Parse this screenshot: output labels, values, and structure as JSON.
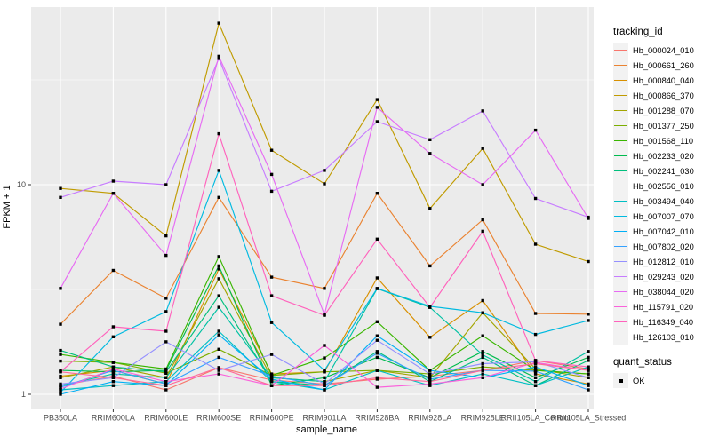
{
  "labels": {
    "y_axis_title": "FPKM + 1",
    "x_axis_title": "sample_name",
    "legend_title": "tracking_id",
    "quant_legend_title": "quant_status",
    "quant_ok_label": "OK"
  },
  "chart_data": {
    "type": "line",
    "title": "",
    "xlabel": "sample_name",
    "ylabel": "FPKM + 1",
    "y_scale": "log10",
    "y_ticks": [
      1,
      10
    ],
    "y_minor_gridlines": [
      3.1623,
      31.623
    ],
    "ylim": [
      0.85,
      69
    ],
    "grid": "on",
    "legend_position": "right",
    "marker": "black-square",
    "quant_status": {
      "title": "quant_status",
      "items": [
        "OK"
      ]
    },
    "colors": {
      "panel_bg": "#EBEBEB",
      "gridline": "#FFFFFF",
      "tick_text": "#4D4D4D",
      "point": "#000000",
      "legend_key_bg": "#F2F2F2"
    },
    "categories": [
      "PB350LA",
      "RRIM600LA",
      "RRIM600LE",
      "RRIM600SE",
      "RRIM600PE",
      "RRIM901LA",
      "RRIM928BA",
      "RRIM928LA",
      "RRIM928LE",
      "RRII105LA_Control",
      "RRII105LA_Stressed"
    ],
    "series": [
      {
        "name": "Hb_000024_010",
        "color": "#F8766D",
        "values": [
          1.1,
          1.22,
          1.05,
          1.34,
          1.17,
          1.12,
          1.18,
          1.22,
          1.3,
          1.45,
          1.32
        ]
      },
      {
        "name": "Hb_000661_260",
        "color": "#EA8331",
        "values": [
          2.16,
          3.9,
          2.87,
          8.7,
          3.62,
          3.2,
          9.1,
          4.1,
          6.8,
          2.43,
          2.41
        ]
      },
      {
        "name": "Hb_000840_040",
        "color": "#D89000",
        "values": [
          1.22,
          1.3,
          1.12,
          3.96,
          1.25,
          1.28,
          3.59,
          1.87,
          2.8,
          1.25,
          1.12
        ]
      },
      {
        "name": "Hb_000866_370",
        "color": "#C09B00",
        "values": [
          9.6,
          9.1,
          5.7,
          59.0,
          14.6,
          10.1,
          25.5,
          7.7,
          14.9,
          5.2,
          4.3
        ]
      },
      {
        "name": "Hb_001288_070",
        "color": "#A3A500",
        "values": [
          1.2,
          1.35,
          1.2,
          3.56,
          1.2,
          1.15,
          1.3,
          1.2,
          2.45,
          1.32,
          1.2
        ]
      },
      {
        "name": "Hb_001377_250",
        "color": "#7CAE00",
        "values": [
          1.44,
          1.42,
          1.26,
          1.64,
          1.23,
          1.28,
          1.3,
          1.25,
          1.35,
          1.3,
          1.25
        ]
      },
      {
        "name": "Hb_001568_110",
        "color": "#39B600",
        "values": [
          1.55,
          1.42,
          1.32,
          4.54,
          1.23,
          1.49,
          2.22,
          1.3,
          1.9,
          1.3,
          1.25
        ]
      },
      {
        "name": "Hb_002233_020",
        "color": "#00BB4E",
        "values": [
          1.3,
          1.28,
          1.3,
          4.1,
          1.1,
          1.2,
          1.5,
          1.2,
          1.6,
          1.2,
          1.5
        ]
      },
      {
        "name": "Hb_002241_030",
        "color": "#00BF7D",
        "values": [
          1.62,
          1.35,
          1.28,
          2.95,
          1.15,
          1.1,
          1.6,
          1.15,
          1.5,
          1.1,
          1.45
        ]
      },
      {
        "name": "Hb_002556_010",
        "color": "#00C1A3",
        "values": [
          1.1,
          1.25,
          1.2,
          2.6,
          1.2,
          1.15,
          3.19,
          2.6,
          1.54,
          1.15,
          1.6
        ]
      },
      {
        "name": "Hb_003494_040",
        "color": "#00BFC4",
        "values": [
          1.05,
          1.1,
          1.15,
          2.0,
          1.15,
          1.05,
          1.3,
          1.1,
          1.25,
          1.1,
          1.35
        ]
      },
      {
        "name": "Hb_007007_070",
        "color": "#00BAE0",
        "values": [
          1.02,
          1.88,
          2.48,
          11.7,
          2.2,
          1.3,
          3.2,
          2.63,
          2.45,
          1.93,
          2.25
        ]
      },
      {
        "name": "Hb_007042_010",
        "color": "#00B0F6",
        "values": [
          1.0,
          1.15,
          1.1,
          1.92,
          1.18,
          1.05,
          1.9,
          1.3,
          1.2,
          1.35,
          1.1
        ]
      },
      {
        "name": "Hb_007802_020",
        "color": "#35A2FF",
        "values": [
          1.08,
          1.3,
          1.12,
          1.5,
          1.22,
          1.1,
          1.57,
          1.18,
          1.3,
          1.29,
          1.05
        ]
      },
      {
        "name": "Hb_012812_010",
        "color": "#9590FF",
        "values": [
          1.12,
          1.2,
          1.78,
          1.3,
          1.55,
          1.12,
          1.81,
          1.25,
          1.4,
          1.43,
          1.2
        ]
      },
      {
        "name": "Hb_029243_020",
        "color": "#C77CFF",
        "values": [
          8.7,
          10.4,
          10.0,
          40.0,
          9.3,
          11.7,
          20.0,
          16.4,
          22.5,
          8.6,
          7.0
        ]
      },
      {
        "name": "Hb_038044_020",
        "color": "#E76BF3",
        "values": [
          3.2,
          9.1,
          4.6,
          41.0,
          11.2,
          2.4,
          23.4,
          14.1,
          10.0,
          18.2,
          6.9
        ]
      },
      {
        "name": "Hb_115791_020",
        "color": "#FA62DB",
        "values": [
          1.06,
          1.32,
          1.15,
          1.25,
          1.1,
          1.71,
          1.08,
          1.12,
          1.2,
          1.42,
          1.3
        ]
      },
      {
        "name": "Hb_116349_040",
        "color": "#FF62BC",
        "values": [
          1.28,
          2.1,
          2.0,
          17.5,
          2.95,
          2.38,
          5.5,
          2.6,
          6.0,
          1.45,
          1.35
        ]
      },
      {
        "name": "Hb_126103_010",
        "color": "#FF6A98",
        "values": [
          1.28,
          1.2,
          1.1,
          1.34,
          1.1,
          1.1,
          1.2,
          1.15,
          1.3,
          1.4,
          1.3
        ]
      }
    ]
  }
}
